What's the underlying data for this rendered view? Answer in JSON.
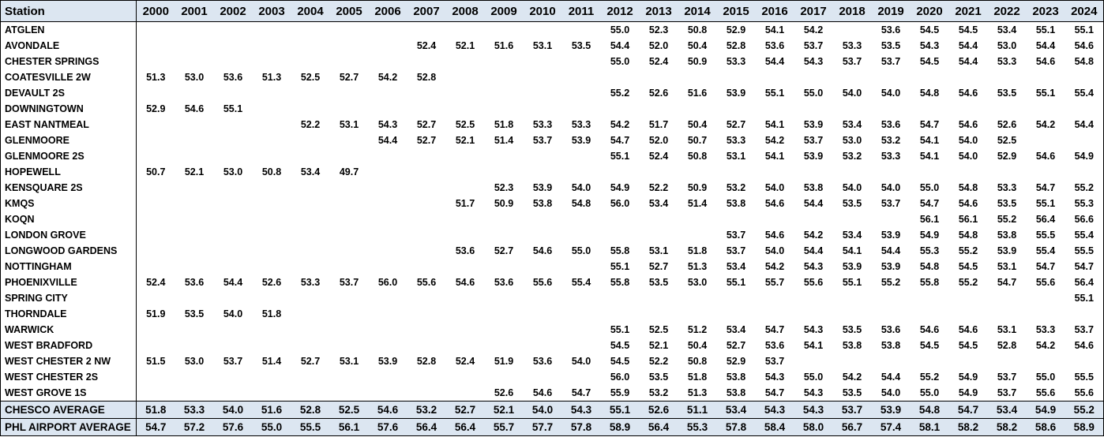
{
  "header": {
    "station_label": "Station",
    "years": [
      "2000",
      "2001",
      "2002",
      "2003",
      "2004",
      "2005",
      "2006",
      "2007",
      "2008",
      "2009",
      "2010",
      "2011",
      "2012",
      "2013",
      "2014",
      "2015",
      "2016",
      "2017",
      "2018",
      "2019",
      "2020",
      "2021",
      "2022",
      "2023",
      "2024"
    ]
  },
  "rows": [
    {
      "station": "ATGLEN",
      "values": [
        "",
        "",
        "",
        "",
        "",
        "",
        "",
        "",
        "",
        "",
        "",
        "",
        "55.0",
        "52.3",
        "50.8",
        "52.9",
        "54.1",
        "54.2",
        "",
        "53.6",
        "54.5",
        "54.5",
        "53.4",
        "55.1",
        "55.1"
      ]
    },
    {
      "station": "AVONDALE",
      "values": [
        "",
        "",
        "",
        "",
        "",
        "",
        "",
        "52.4",
        "52.1",
        "51.6",
        "53.1",
        "53.5",
        "54.4",
        "52.0",
        "50.4",
        "52.8",
        "53.6",
        "53.7",
        "53.3",
        "53.5",
        "54.3",
        "54.4",
        "53.0",
        "54.4",
        "54.6"
      ]
    },
    {
      "station": "CHESTER SPRINGS",
      "values": [
        "",
        "",
        "",
        "",
        "",
        "",
        "",
        "",
        "",
        "",
        "",
        "",
        "55.0",
        "52.4",
        "50.9",
        "53.3",
        "54.4",
        "54.3",
        "53.7",
        "53.7",
        "54.5",
        "54.4",
        "53.3",
        "54.6",
        "54.8"
      ]
    },
    {
      "station": "COATESVILLE 2W",
      "values": [
        "51.3",
        "53.0",
        "53.6",
        "51.3",
        "52.5",
        "52.7",
        "54.2",
        "52.8",
        "",
        "",
        "",
        "",
        "",
        "",
        "",
        "",
        "",
        "",
        "",
        "",
        "",
        "",
        "",
        "",
        ""
      ]
    },
    {
      "station": "DEVAULT 2S",
      "values": [
        "",
        "",
        "",
        "",
        "",
        "",
        "",
        "",
        "",
        "",
        "",
        "",
        "55.2",
        "52.6",
        "51.6",
        "53.9",
        "55.1",
        "55.0",
        "54.0",
        "54.0",
        "54.8",
        "54.6",
        "53.5",
        "55.1",
        "55.4"
      ]
    },
    {
      "station": "DOWNINGTOWN",
      "values": [
        "52.9",
        "54.6",
        "55.1",
        "",
        "",
        "",
        "",
        "",
        "",
        "",
        "",
        "",
        "",
        "",
        "",
        "",
        "",
        "",
        "",
        "",
        "",
        "",
        "",
        "",
        ""
      ]
    },
    {
      "station": "EAST NANTMEAL",
      "values": [
        "",
        "",
        "",
        "",
        "52.2",
        "53.1",
        "54.3",
        "52.7",
        "52.5",
        "51.8",
        "53.3",
        "53.3",
        "54.2",
        "51.7",
        "50.4",
        "52.7",
        "54.1",
        "53.9",
        "53.4",
        "53.6",
        "54.7",
        "54.6",
        "52.6",
        "54.2",
        "54.4"
      ]
    },
    {
      "station": "GLENMOORE",
      "values": [
        "",
        "",
        "",
        "",
        "",
        "",
        "54.4",
        "52.7",
        "52.1",
        "51.4",
        "53.7",
        "53.9",
        "54.7",
        "52.0",
        "50.7",
        "53.3",
        "54.2",
        "53.7",
        "53.0",
        "53.2",
        "54.1",
        "54.0",
        "52.5",
        "",
        ""
      ]
    },
    {
      "station": "GLENMOORE 2S",
      "values": [
        "",
        "",
        "",
        "",
        "",
        "",
        "",
        "",
        "",
        "",
        "",
        "",
        "55.1",
        "52.4",
        "50.8",
        "53.1",
        "54.1",
        "53.9",
        "53.2",
        "53.3",
        "54.1",
        "54.0",
        "52.9",
        "54.6",
        "54.9"
      ]
    },
    {
      "station": "HOPEWELL",
      "values": [
        "50.7",
        "52.1",
        "53.0",
        "50.8",
        "53.4",
        "49.7",
        "",
        "",
        "",
        "",
        "",
        "",
        "",
        "",
        "",
        "",
        "",
        "",
        "",
        "",
        "",
        "",
        "",
        "",
        ""
      ]
    },
    {
      "station": "KENSQUARE 2S",
      "values": [
        "",
        "",
        "",
        "",
        "",
        "",
        "",
        "",
        "",
        "52.3",
        "53.9",
        "54.0",
        "54.9",
        "52.2",
        "50.9",
        "53.2",
        "54.0",
        "53.8",
        "54.0",
        "54.0",
        "55.0",
        "54.8",
        "53.3",
        "54.7",
        "55.2"
      ]
    },
    {
      "station": "KMQS",
      "values": [
        "",
        "",
        "",
        "",
        "",
        "",
        "",
        "",
        "51.7",
        "50.9",
        "53.8",
        "54.8",
        "56.0",
        "53.4",
        "51.4",
        "53.8",
        "54.6",
        "54.4",
        "53.5",
        "53.7",
        "54.7",
        "54.6",
        "53.5",
        "55.1",
        "55.3"
      ]
    },
    {
      "station": "KOQN",
      "values": [
        "",
        "",
        "",
        "",
        "",
        "",
        "",
        "",
        "",
        "",
        "",
        "",
        "",
        "",
        "",
        "",
        "",
        "",
        "",
        "",
        "56.1",
        "56.1",
        "55.2",
        "56.4",
        "56.6"
      ]
    },
    {
      "station": "LONDON GROVE",
      "values": [
        "",
        "",
        "",
        "",
        "",
        "",
        "",
        "",
        "",
        "",
        "",
        "",
        "",
        "",
        "",
        "53.7",
        "54.6",
        "54.2",
        "53.4",
        "53.9",
        "54.9",
        "54.8",
        "53.8",
        "55.5",
        "55.4"
      ]
    },
    {
      "station": "LONGWOOD GARDENS",
      "values": [
        "",
        "",
        "",
        "",
        "",
        "",
        "",
        "",
        "53.6",
        "52.7",
        "54.6",
        "55.0",
        "55.8",
        "53.1",
        "51.8",
        "53.7",
        "54.0",
        "54.4",
        "54.1",
        "54.4",
        "55.3",
        "55.2",
        "53.9",
        "55.4",
        "55.5"
      ]
    },
    {
      "station": "NOTTINGHAM",
      "values": [
        "",
        "",
        "",
        "",
        "",
        "",
        "",
        "",
        "",
        "",
        "",
        "",
        "55.1",
        "52.7",
        "51.3",
        "53.4",
        "54.2",
        "54.3",
        "53.9",
        "53.9",
        "54.8",
        "54.5",
        "53.1",
        "54.7",
        "54.7"
      ]
    },
    {
      "station": "PHOENIXVILLE",
      "values": [
        "52.4",
        "53.6",
        "54.4",
        "52.6",
        "53.3",
        "53.7",
        "56.0",
        "55.6",
        "54.6",
        "53.6",
        "55.6",
        "55.4",
        "55.8",
        "53.5",
        "53.0",
        "55.1",
        "55.7",
        "55.6",
        "55.1",
        "55.2",
        "55.8",
        "55.2",
        "54.7",
        "55.6",
        "56.4"
      ]
    },
    {
      "station": "SPRING CITY",
      "values": [
        "",
        "",
        "",
        "",
        "",
        "",
        "",
        "",
        "",
        "",
        "",
        "",
        "",
        "",
        "",
        "",
        "",
        "",
        "",
        "",
        "",
        "",
        "",
        "",
        "55.1"
      ]
    },
    {
      "station": "THORNDALE",
      "values": [
        "51.9",
        "53.5",
        "54.0",
        "51.8",
        "",
        "",
        "",
        "",
        "",
        "",
        "",
        "",
        "",
        "",
        "",
        "",
        "",
        "",
        "",
        "",
        "",
        "",
        "",
        "",
        ""
      ]
    },
    {
      "station": "WARWICK",
      "values": [
        "",
        "",
        "",
        "",
        "",
        "",
        "",
        "",
        "",
        "",
        "",
        "",
        "55.1",
        "52.5",
        "51.2",
        "53.4",
        "54.7",
        "54.3",
        "53.5",
        "53.6",
        "54.6",
        "54.6",
        "53.1",
        "53.3",
        "53.7"
      ]
    },
    {
      "station": "WEST BRADFORD",
      "values": [
        "",
        "",
        "",
        "",
        "",
        "",
        "",
        "",
        "",
        "",
        "",
        "",
        "54.5",
        "52.1",
        "50.4",
        "52.7",
        "53.6",
        "54.1",
        "53.8",
        "53.8",
        "54.5",
        "54.5",
        "52.8",
        "54.2",
        "54.6"
      ]
    },
    {
      "station": "WEST CHESTER 2 NW",
      "values": [
        "51.5",
        "53.0",
        "53.7",
        "51.4",
        "52.7",
        "53.1",
        "53.9",
        "52.8",
        "52.4",
        "51.9",
        "53.6",
        "54.0",
        "54.5",
        "52.2",
        "50.8",
        "52.9",
        "53.7",
        "",
        "",
        "",
        "",
        "",
        "",
        "",
        ""
      ]
    },
    {
      "station": "WEST CHESTER 2S",
      "values": [
        "",
        "",
        "",
        "",
        "",
        "",
        "",
        "",
        "",
        "",
        "",
        "",
        "56.0",
        "53.5",
        "51.8",
        "53.8",
        "54.3",
        "55.0",
        "54.2",
        "54.4",
        "55.2",
        "54.9",
        "53.7",
        "55.0",
        "55.5"
      ]
    },
    {
      "station": "WEST GROVE 1S",
      "values": [
        "",
        "",
        "",
        "",
        "",
        "",
        "",
        "",
        "",
        "52.6",
        "54.6",
        "54.7",
        "55.9",
        "53.2",
        "51.3",
        "53.8",
        "54.7",
        "54.3",
        "53.5",
        "54.0",
        "55.0",
        "54.9",
        "53.7",
        "55.6",
        "55.6"
      ]
    }
  ],
  "averages": [
    {
      "station": "CHESCO AVERAGE",
      "values": [
        "51.8",
        "53.3",
        "54.0",
        "51.6",
        "52.8",
        "52.5",
        "54.6",
        "53.2",
        "52.7",
        "52.1",
        "54.0",
        "54.3",
        "55.1",
        "52.6",
        "51.1",
        "53.4",
        "54.3",
        "54.3",
        "53.7",
        "53.9",
        "54.8",
        "54.7",
        "53.4",
        "54.9",
        "55.2"
      ]
    },
    {
      "station": "PHL AIRPORT AVERAGE",
      "values": [
        "54.7",
        "57.2",
        "57.6",
        "55.0",
        "55.5",
        "56.1",
        "57.6",
        "56.4",
        "56.4",
        "55.7",
        "57.7",
        "57.8",
        "58.9",
        "56.4",
        "55.3",
        "57.8",
        "58.4",
        "58.0",
        "56.7",
        "57.4",
        "58.1",
        "58.2",
        "58.2",
        "58.6",
        "58.9"
      ]
    }
  ]
}
